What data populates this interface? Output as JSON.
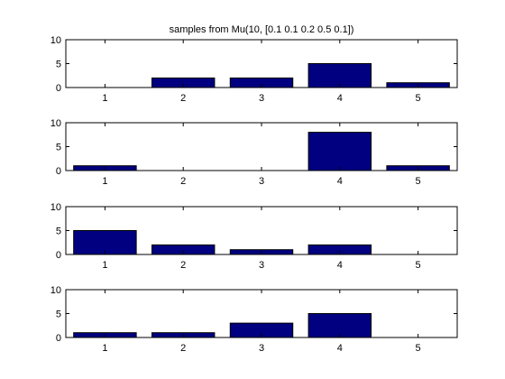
{
  "figure": {
    "title": "samples from Mu(10, [0.1 0.1 0.2 0.5 0.1])",
    "bar_color": "#000080"
  },
  "chart_data": [
    {
      "type": "bar",
      "title": "samples from Mu(10, [0.1 0.1 0.2 0.5 0.1])",
      "categories": [
        "1",
        "2",
        "3",
        "4",
        "5"
      ],
      "values": [
        0,
        2,
        2,
        5,
        1
      ],
      "ylim": [
        0,
        10
      ],
      "yticks": [
        "0",
        "5",
        "10"
      ],
      "xlabel": "",
      "ylabel": "",
      "grid": false
    },
    {
      "type": "bar",
      "categories": [
        "1",
        "2",
        "3",
        "4",
        "5"
      ],
      "values": [
        1,
        0,
        0,
        8,
        1
      ],
      "ylim": [
        0,
        10
      ],
      "yticks": [
        "0",
        "5",
        "10"
      ],
      "xlabel": "",
      "ylabel": "",
      "grid": false
    },
    {
      "type": "bar",
      "categories": [
        "1",
        "2",
        "3",
        "4",
        "5"
      ],
      "values": [
        5,
        2,
        1,
        2,
        0
      ],
      "ylim": [
        0,
        10
      ],
      "yticks": [
        "0",
        "5",
        "10"
      ],
      "xlabel": "",
      "ylabel": "",
      "grid": false
    },
    {
      "type": "bar",
      "categories": [
        "1",
        "2",
        "3",
        "4",
        "5"
      ],
      "values": [
        1,
        1,
        3,
        5,
        0
      ],
      "ylim": [
        0,
        10
      ],
      "yticks": [
        "0",
        "5",
        "10"
      ],
      "xlabel": "",
      "ylabel": "",
      "grid": false
    }
  ]
}
